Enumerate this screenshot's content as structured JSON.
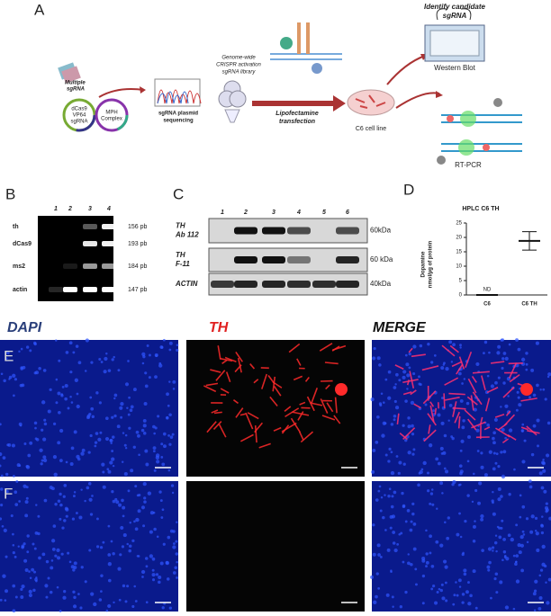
{
  "panel_a": {
    "label": "A",
    "multiple_sgrna": [
      "Multiple",
      "sgRNA"
    ],
    "plasmid_1": [
      "dCas9",
      "VP64",
      "sgRNA"
    ],
    "plasmid_2": [
      "MPH",
      "Complex"
    ],
    "sequencing": [
      "sgRNA plasmid",
      "sequencing"
    ],
    "library": [
      "Genome-wide",
      "CRISPR activation",
      "sgRNA library"
    ],
    "transfection": [
      "Lipofectamine",
      "transfection"
    ],
    "cell_line": "C6 cell line",
    "identify": [
      "Identify candidate",
      "sgRNA"
    ],
    "western_blot": "Western Blot",
    "rt_pcr": "RT-PCR"
  },
  "panel_b": {
    "label": "B",
    "lanes": [
      "1",
      "2",
      "3",
      "4"
    ],
    "rows": [
      {
        "name": "th",
        "size": "156 pb"
      },
      {
        "name": "dCas9",
        "size": "193 pb"
      },
      {
        "name": "ms2",
        "size": "184 pb"
      },
      {
        "name": "actin",
        "size": "147 pb"
      }
    ]
  },
  "panel_c": {
    "label": "C",
    "lanes": [
      "1",
      "2",
      "3",
      "4",
      "5",
      "6"
    ],
    "rows": [
      {
        "name": [
          "TH",
          "Ab 112"
        ],
        "size": "60kDa"
      },
      {
        "name": [
          "TH",
          "F-11"
        ],
        "size": "60 kDa"
      },
      {
        "name": [
          "ACTIN"
        ],
        "size": "40kDa"
      }
    ]
  },
  "panel_d": {
    "label": "D",
    "title": "HPLC C6 TH",
    "y_label": [
      "Dopamine",
      "nmol/µg of protein"
    ],
    "categories": [
      "C6",
      "C6 TH"
    ],
    "values": [
      0,
      18.8
    ],
    "errors": [
      null,
      3.2
    ],
    "annotation": "ND",
    "ylim": [
      0,
      25
    ],
    "yticks": [
      0,
      5,
      10,
      15,
      20,
      25
    ]
  },
  "channels": [
    "DAPI",
    "TH",
    "MERGE"
  ],
  "panel_e": {
    "label": "E"
  },
  "panel_f": {
    "label": "F"
  }
}
